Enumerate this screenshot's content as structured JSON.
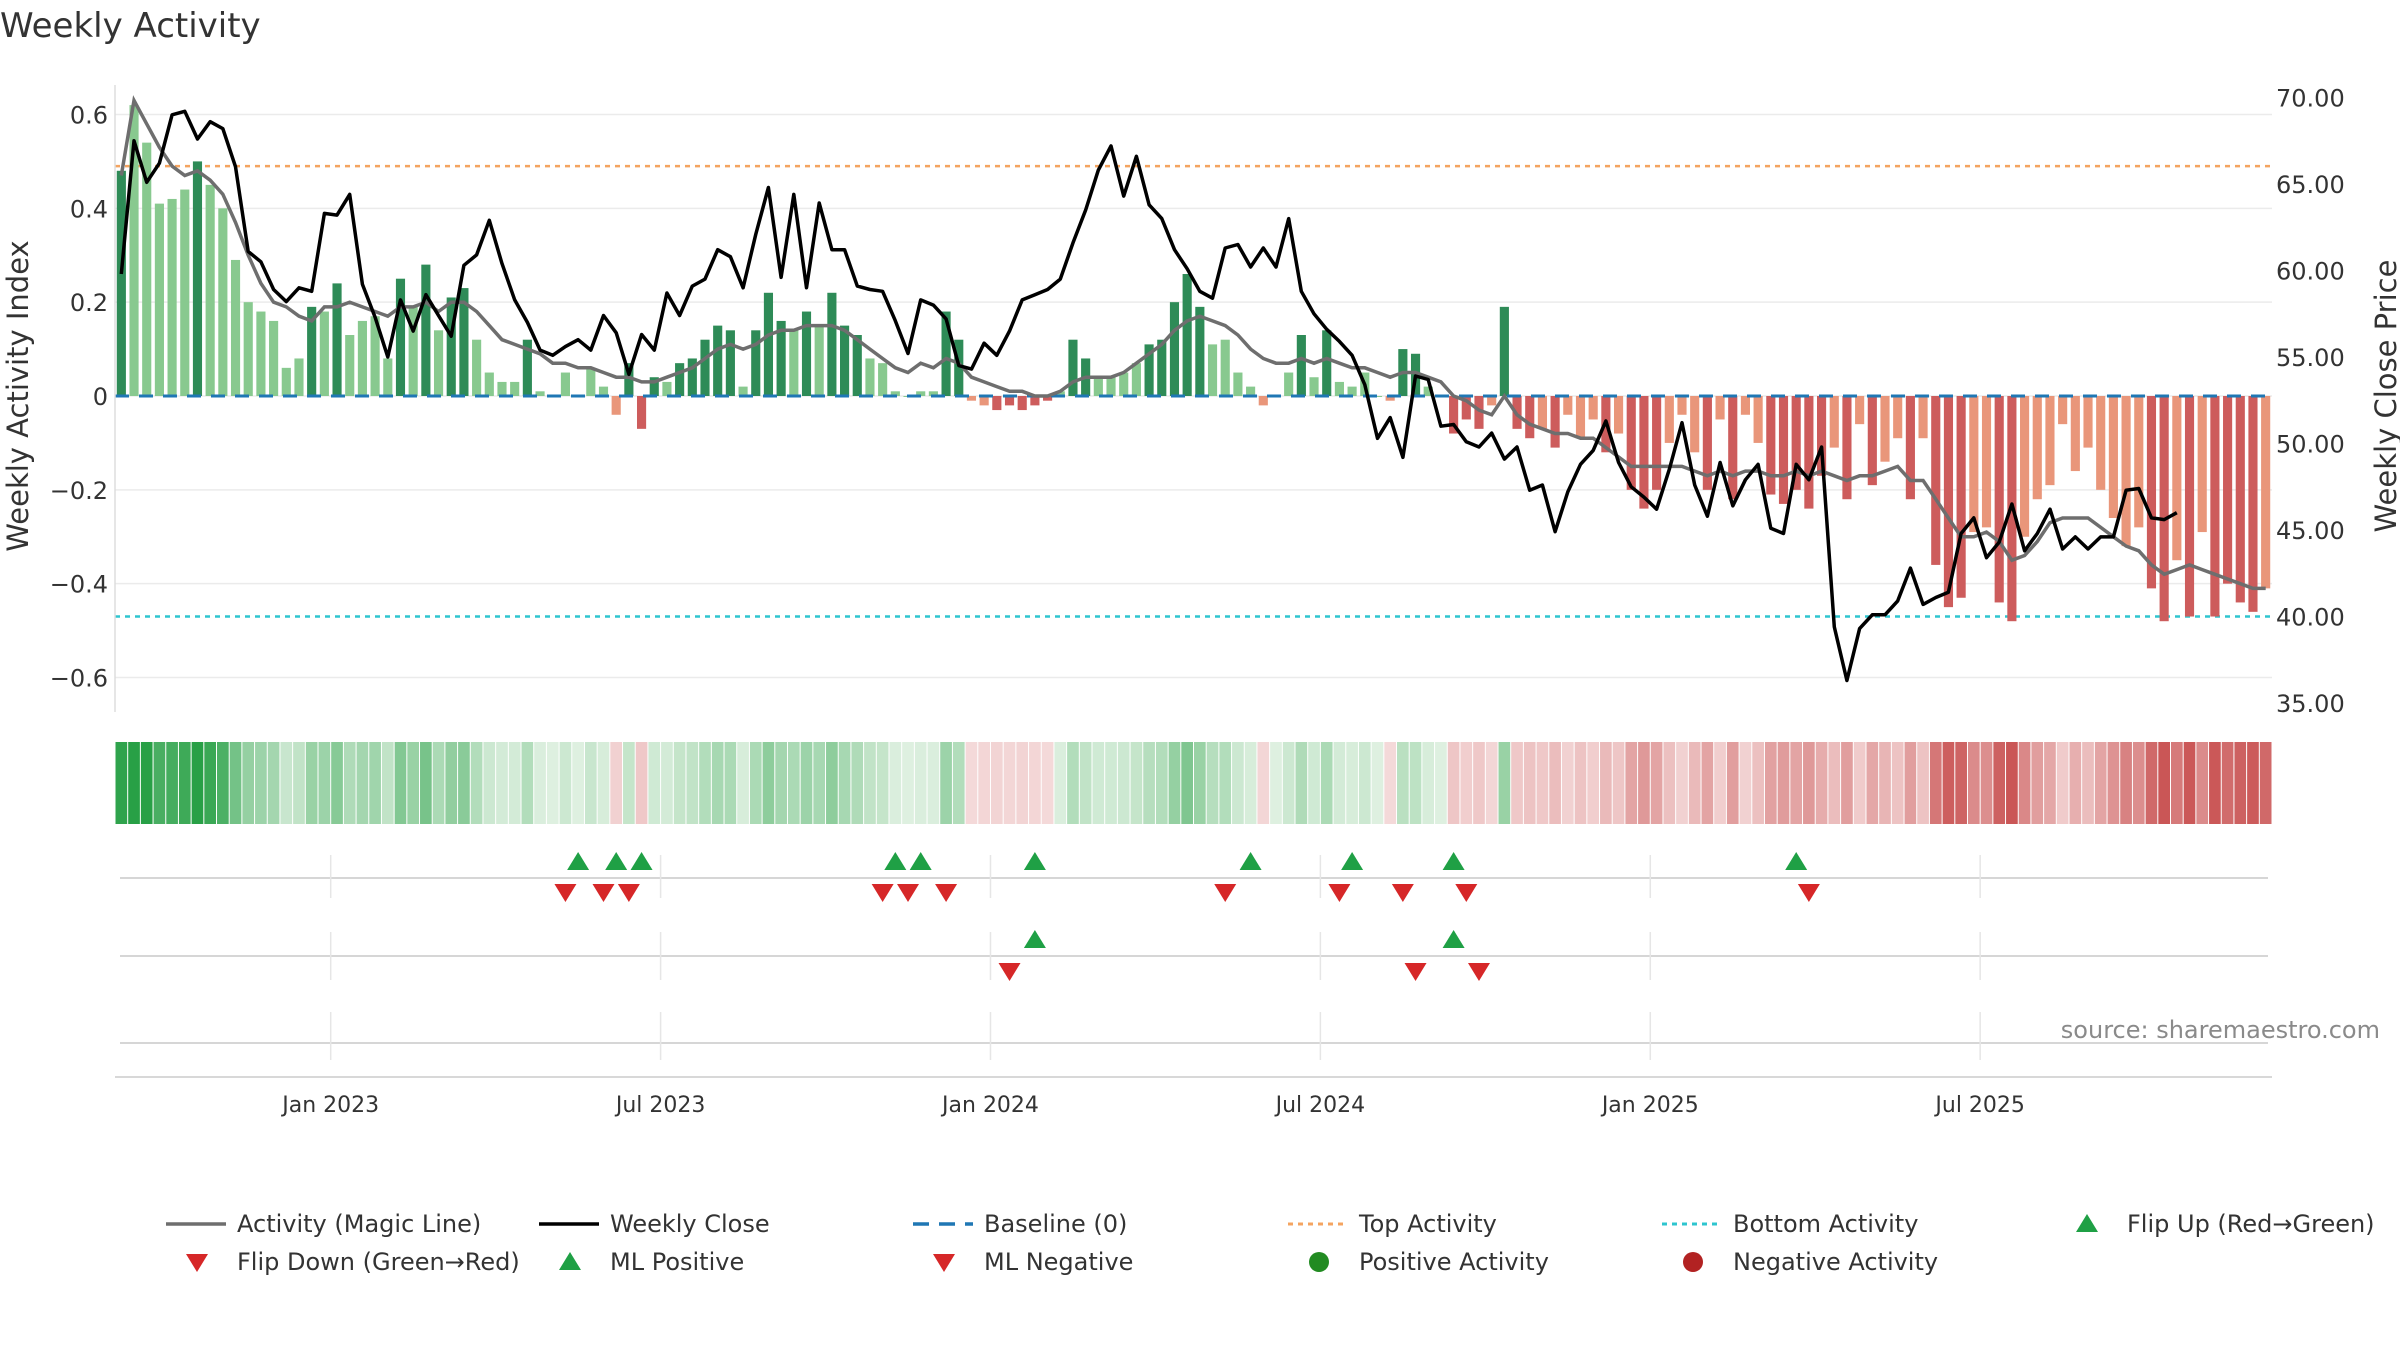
{
  "title": "Weekly Activity",
  "source": "source: sharemaestro.com",
  "colors": {
    "pos_strong": "#2e8b57",
    "pos_light": "#88c98f",
    "neg_strong": "#cd5c5c",
    "neg_light": "#e9967a",
    "magic_line": "#6e6e6e",
    "close_line": "#000000",
    "baseline": "#1f77b4",
    "top": "#f4a460",
    "bottom": "#2ec5cf",
    "flip_up": "#1fa045",
    "flip_down": "#d62728",
    "pos_dot": "#228b22",
    "neg_dot": "#b22222"
  },
  "chart_data": {
    "type": "bar+line",
    "title": "Weekly Activity",
    "xlabel": "",
    "ylabel_left": "Weekly Activity Index",
    "ylabel_right": "Weekly Close Price",
    "ylim_left": [
      -0.66,
      0.6
    ],
    "ylim_right": [
      33.2,
      71.3
    ],
    "y_ticks_left": [
      0.6,
      0.4,
      0.2,
      0,
      -0.2,
      -0.4,
      -0.6
    ],
    "y_tick_labels_left": [
      "0.6",
      "0.4",
      "0.2",
      "0",
      "−0.2",
      "−0.4",
      "−0.6"
    ],
    "y_ticks_right": [
      70,
      65,
      60,
      55,
      50,
      45,
      40,
      35
    ],
    "y_tick_labels_right": [
      "70.00",
      "65.00",
      "60.00",
      "55.00",
      "50.00",
      "45.00",
      "40.00",
      "35.00"
    ],
    "x_ticks": [
      {
        "label": "Jan 2023",
        "week": 17
      },
      {
        "label": "Jul 2023",
        "week": 43
      },
      {
        "label": "Jan 2024",
        "week": 69
      },
      {
        "label": "Jul 2024",
        "week": 95
      },
      {
        "label": "Jan 2025",
        "week": 121
      },
      {
        "label": "Jul 2025",
        "week": 147
      }
    ],
    "top_activity": 0.49,
    "bottom_activity": -0.47,
    "baseline": 0,
    "activity": [
      0.48,
      0.62,
      0.54,
      0.41,
      0.42,
      0.44,
      0.5,
      0.45,
      0.4,
      0.29,
      0.2,
      0.18,
      0.16,
      0.06,
      0.08,
      0.19,
      0.18,
      0.24,
      0.13,
      0.16,
      0.17,
      0.08,
      0.25,
      0.19,
      0.28,
      0.14,
      0.21,
      0.23,
      0.12,
      0.05,
      0.03,
      0.03,
      0.12,
      0.01,
      0.0,
      0.05,
      0.0,
      0.06,
      0.02,
      -0.04,
      0.07,
      -0.07,
      0.04,
      0.03,
      0.07,
      0.08,
      0.12,
      0.15,
      0.14,
      0.02,
      0.14,
      0.22,
      0.16,
      0.14,
      0.18,
      0.15,
      0.22,
      0.15,
      0.13,
      0.08,
      0.07,
      0.01,
      0.0,
      0.01,
      0.01,
      0.18,
      0.12,
      -0.01,
      -0.02,
      -0.03,
      -0.02,
      -0.03,
      -0.02,
      -0.01,
      0.01,
      0.12,
      0.08,
      0.04,
      0.04,
      0.05,
      0.07,
      0.11,
      0.12,
      0.2,
      0.26,
      0.19,
      0.11,
      0.12,
      0.05,
      0.02,
      -0.02,
      0.0,
      0.05,
      0.13,
      0.04,
      0.14,
      0.03,
      0.02,
      0.05,
      0.0,
      -0.01,
      0.1,
      0.09,
      0.02,
      0.0,
      -0.08,
      -0.05,
      -0.07,
      -0.02,
      0.19,
      -0.07,
      -0.09,
      -0.07,
      -0.11,
      -0.04,
      -0.09,
      -0.05,
      -0.12,
      -0.08,
      -0.2,
      -0.24,
      -0.2,
      -0.1,
      -0.04,
      -0.12,
      -0.2,
      -0.05,
      -0.22,
      -0.04,
      -0.1,
      -0.21,
      -0.23,
      -0.2,
      -0.24,
      -0.17,
      -0.11,
      -0.22,
      -0.06,
      -0.19,
      -0.14,
      -0.09,
      -0.22,
      -0.09,
      -0.36,
      -0.45,
      -0.43,
      -0.29,
      -0.28,
      -0.44,
      -0.48,
      -0.3,
      -0.22,
      -0.19,
      -0.06,
      -0.16,
      -0.11,
      -0.2,
      -0.26,
      -0.32,
      -0.28,
      -0.41,
      -0.48,
      -0.35,
      -0.47,
      -0.29,
      -0.47,
      -0.4,
      -0.44,
      -0.46,
      -0.41
    ],
    "magic_line": [
      0.47,
      0.63,
      0.58,
      0.53,
      0.49,
      0.47,
      0.48,
      0.46,
      0.43,
      0.37,
      0.3,
      0.24,
      0.2,
      0.19,
      0.17,
      0.16,
      0.19,
      0.19,
      0.2,
      0.19,
      0.18,
      0.17,
      0.19,
      0.19,
      0.2,
      0.18,
      0.2,
      0.2,
      0.18,
      0.15,
      0.12,
      0.11,
      0.1,
      0.09,
      0.07,
      0.07,
      0.06,
      0.06,
      0.05,
      0.04,
      0.04,
      0.03,
      0.03,
      0.04,
      0.05,
      0.06,
      0.08,
      0.1,
      0.11,
      0.1,
      0.11,
      0.13,
      0.14,
      0.14,
      0.15,
      0.15,
      0.15,
      0.14,
      0.12,
      0.1,
      0.08,
      0.06,
      0.05,
      0.07,
      0.06,
      0.08,
      0.07,
      0.04,
      0.03,
      0.02,
      0.01,
      0.01,
      0.0,
      0.0,
      0.01,
      0.03,
      0.04,
      0.04,
      0.04,
      0.05,
      0.07,
      0.09,
      0.11,
      0.14,
      0.16,
      0.17,
      0.16,
      0.15,
      0.13,
      0.1,
      0.08,
      0.07,
      0.07,
      0.08,
      0.07,
      0.08,
      0.07,
      0.06,
      0.06,
      0.05,
      0.04,
      0.05,
      0.05,
      0.04,
      0.03,
      0.0,
      -0.01,
      -0.03,
      -0.04,
      0.0,
      -0.04,
      -0.06,
      -0.07,
      -0.08,
      -0.08,
      -0.09,
      -0.09,
      -0.11,
      -0.13,
      -0.15,
      -0.15,
      -0.15,
      -0.15,
      -0.15,
      -0.16,
      -0.17,
      -0.16,
      -0.17,
      -0.16,
      -0.16,
      -0.17,
      -0.17,
      -0.16,
      -0.17,
      -0.16,
      -0.17,
      -0.18,
      -0.17,
      -0.17,
      -0.16,
      -0.15,
      -0.18,
      -0.18,
      -0.22,
      -0.26,
      -0.3,
      -0.3,
      -0.29,
      -0.31,
      -0.35,
      -0.34,
      -0.31,
      -0.27,
      -0.26,
      -0.26,
      -0.26,
      -0.28,
      -0.3,
      -0.32,
      -0.33,
      -0.36,
      -0.38,
      -0.37,
      -0.36,
      -0.37,
      -0.38,
      -0.39,
      -0.4,
      -0.41,
      -0.41
    ],
    "close": [
      59.8,
      67.5,
      65.1,
      66.2,
      69.0,
      69.2,
      67.6,
      68.6,
      68.2,
      66.0,
      61.1,
      60.5,
      58.9,
      58.2,
      59.0,
      58.8,
      63.3,
      63.2,
      64.4,
      59.2,
      57.3,
      55.0,
      58.3,
      56.5,
      58.6,
      57.4,
      56.2,
      60.3,
      60.9,
      62.9,
      60.4,
      58.3,
      57.0,
      55.4,
      55.1,
      55.6,
      56.0,
      55.4,
      57.4,
      56.4,
      54.0,
      56.3,
      55.4,
      58.7,
      57.4,
      59.1,
      59.5,
      61.2,
      60.8,
      59.0,
      62.1,
      64.8,
      59.6,
      64.4,
      59.0,
      63.9,
      61.2,
      61.2,
      59.1,
      58.9,
      58.8,
      57.1,
      55.2,
      58.3,
      58.0,
      57.2,
      54.5,
      54.3,
      55.8,
      55.1,
      56.5,
      58.3,
      58.6,
      58.9,
      59.5,
      61.6,
      63.5,
      65.8,
      67.2,
      64.3,
      66.6,
      63.8,
      63.0,
      61.2,
      60.1,
      58.8,
      58.4,
      61.3,
      61.5,
      60.2,
      61.3,
      60.2,
      63.0,
      58.8,
      57.5,
      56.6,
      55.9,
      55.1,
      53.4,
      50.3,
      51.5,
      49.2,
      53.9,
      53.7,
      51.0,
      51.1,
      50.1,
      49.8,
      50.6,
      49.1,
      49.8,
      47.3,
      47.6,
      44.9,
      47.2,
      48.8,
      49.6,
      51.3,
      48.9,
      47.5,
      46.9,
      46.2,
      48.5,
      51.2,
      47.6,
      45.8,
      48.9,
      46.4,
      47.9,
      48.8,
      45.1,
      44.8,
      48.8,
      47.9,
      49.8,
      39.4,
      36.3,
      39.3,
      40.1,
      40.1,
      40.9,
      42.8,
      40.7,
      41.1,
      41.4,
      44.8,
      45.7,
      43.4,
      44.3,
      46.5,
      43.8,
      44.8,
      46.2,
      43.9,
      44.6,
      43.9,
      44.6,
      44.6,
      47.3,
      47.4,
      45.7,
      45.6,
      46.0
    ]
  },
  "legend": [
    {
      "label": "Activity (Magic Line)",
      "marker": "line",
      "color": "#6e6e6e"
    },
    {
      "label": "Weekly Close",
      "marker": "line",
      "color": "#000000"
    },
    {
      "label": "Baseline (0)",
      "marker": "dash",
      "color": "#1f77b4"
    },
    {
      "label": "Top Activity",
      "marker": "dot-line",
      "color": "#f4a460"
    },
    {
      "label": "Bottom Activity",
      "marker": "dot-line",
      "color": "#2ec5cf"
    },
    {
      "label": "Flip Up (Red→Green)",
      "marker": "tri-up",
      "color": "#1fa045"
    },
    {
      "label": "Flip Down (Green→Red)",
      "marker": "tri-down",
      "color": "#d62728"
    },
    {
      "label": "ML Positive",
      "marker": "tri-up",
      "color": "#1fa045"
    },
    {
      "label": "ML Negative",
      "marker": "tri-down",
      "color": "#d62728"
    },
    {
      "label": "Positive Activity",
      "marker": "circle",
      "color": "#228b22"
    },
    {
      "label": "Negative Activity",
      "marker": "circle",
      "color": "#b22222"
    }
  ],
  "signals": {
    "flip_up_weeks": [
      36,
      39,
      41,
      61,
      63,
      72,
      89,
      97,
      105,
      132
    ],
    "flip_down_weeks": [
      35,
      38,
      40,
      60,
      62,
      65,
      87,
      96,
      101,
      106,
      133
    ],
    "ml_positive_weeks": [
      72,
      105
    ],
    "ml_negative_weeks": [
      70,
      102,
      107
    ]
  }
}
